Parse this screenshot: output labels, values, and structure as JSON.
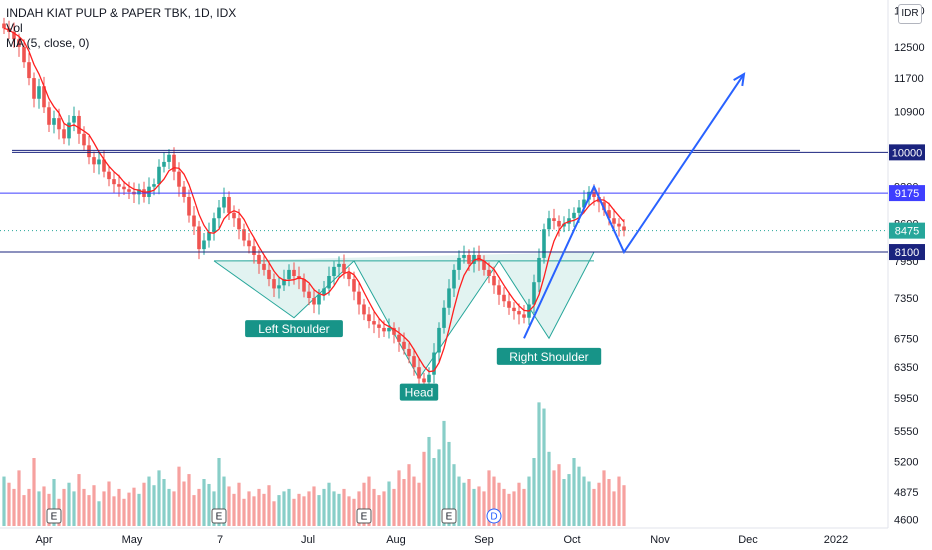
{
  "header": {
    "title": "INDAH KIAT PULP & PAPER TBK, 1D, IDX",
    "indicator_vol": "Vol",
    "indicator_ma": "MA (5, close, 0)",
    "currency": "IDR"
  },
  "colors": {
    "up": "#26a69a",
    "down": "#ef5350",
    "ma": "#ff1f1f",
    "pattern_fill": "#dff2ef",
    "pattern_stroke": "#26a69a",
    "arrow": "#2962ff",
    "line_navy": "#1a237e",
    "line_blue": "#3f3fff",
    "line_dark": "#131722",
    "price_tag": "#26a69a",
    "annotation_bg": "#179488"
  },
  "chart_data": {
    "type": "candlestick",
    "symbol": "INDAH KIAT PULP & PAPER TBK",
    "interval": "1D",
    "exchange": "IDX",
    "y_scale": "log",
    "ylim": [
      4500,
      14000
    ],
    "price_ticks": [
      13500,
      12500,
      11700,
      10900,
      10000,
      9300,
      8600,
      7950,
      7350,
      6750,
      6350,
      5950,
      5550,
      5200,
      4875,
      4600
    ],
    "x_tick_labels": [
      {
        "label": "Apr",
        "month": 4
      },
      {
        "label": "May",
        "month": 5
      },
      {
        "label": "7",
        "month": 6
      },
      {
        "label": "Jul",
        "month": 7
      },
      {
        "label": "Aug",
        "month": 8
      },
      {
        "label": "Sep",
        "month": 9
      },
      {
        "label": "Oct",
        "month": 10
      },
      {
        "label": "Nov",
        "month": 11
      },
      {
        "label": "Dec",
        "month": 12
      },
      {
        "label": "2022",
        "month": 13
      }
    ],
    "current_price": 8475,
    "horizontal_levels": [
      {
        "price": 10000,
        "label": "10000",
        "color": "navy"
      },
      {
        "price": 9175,
        "label": "9175",
        "color": "blue"
      },
      {
        "price": 8100,
        "label": "8100",
        "color": "navy"
      }
    ],
    "close_series": [
      13000,
      12900,
      12700,
      12500,
      12100,
      11700,
      11200,
      11500,
      11000,
      10600,
      10750,
      10500,
      10300,
      10650,
      10800,
      10400,
      10150,
      9900,
      9750,
      9850,
      9600,
      9450,
      9350,
      9300,
      9250,
      9200,
      9150,
      9250,
      9100,
      9300,
      9350,
      9700,
      9800,
      9950,
      9600,
      9300,
      9100,
      8750,
      8550,
      8150,
      8300,
      8450,
      8700,
      8900,
      9100,
      8800,
      8700,
      8500,
      8300,
      8200,
      8050,
      7900,
      7800,
      7650,
      7500,
      7550,
      7650,
      7800,
      7700,
      7650,
      7450,
      7350,
      7250,
      7400,
      7500,
      7700,
      7850,
      7900,
      7750,
      7650,
      7450,
      7250,
      7100,
      7000,
      6950,
      6900,
      6850,
      6900,
      6800,
      6700,
      6600,
      6500,
      6350,
      6200,
      6150,
      6250,
      6550,
      6900,
      7200,
      7500,
      7800,
      8000,
      8050,
      7900,
      8050,
      7950,
      7800,
      7700,
      7550,
      7400,
      7300,
      7200,
      7150,
      7100,
      7050,
      7250,
      7600,
      8000,
      8500,
      8700,
      8650,
      8550,
      8600,
      8700,
      8800,
      8900,
      9050,
      9200,
      9100,
      9000,
      8850,
      8700,
      8600,
      8550,
      8475
    ],
    "volume_series": [
      40,
      35,
      30,
      45,
      25,
      30,
      55,
      28,
      32,
      26,
      38,
      22,
      30,
      35,
      28,
      42,
      30,
      25,
      33,
      20,
      28,
      36,
      24,
      30,
      22,
      27,
      31,
      26,
      35,
      40,
      33,
      45,
      38,
      30,
      28,
      48,
      36,
      42,
      25,
      30,
      38,
      34,
      28,
      55,
      40,
      32,
      26,
      35,
      22,
      28,
      24,
      30,
      26,
      33,
      20,
      25,
      28,
      30,
      22,
      26,
      24,
      28,
      32,
      25,
      30,
      35,
      28,
      26,
      30,
      24,
      22,
      28,
      35,
      40,
      30,
      25,
      28,
      36,
      30,
      45,
      38,
      50,
      40,
      35,
      60,
      72,
      55,
      62,
      85,
      68,
      50,
      40,
      35,
      38,
      30,
      32,
      28,
      45,
      40,
      35,
      30,
      26,
      28,
      35,
      30,
      40,
      55,
      100,
      95,
      60,
      45,
      50,
      38,
      42,
      55,
      48,
      40,
      36,
      30,
      35,
      45,
      38,
      28,
      40,
      33
    ],
    "volume_ylim": [
      0,
      110
    ],
    "events": [
      {
        "label": "E",
        "kind": "earnings",
        "index": 10
      },
      {
        "label": "E",
        "kind": "earnings",
        "index": 43
      },
      {
        "label": "E",
        "kind": "earnings",
        "index": 72
      },
      {
        "label": "E",
        "kind": "earnings",
        "index": 89
      },
      {
        "label": "D",
        "kind": "dividend",
        "index": 98
      }
    ],
    "annotations": [
      {
        "label": "Left Shoulder",
        "price": 7000,
        "index": 58
      },
      {
        "label": "Head",
        "price": 6120,
        "index": 83
      },
      {
        "label": "Right Shoulder",
        "price": 6600,
        "index": 109
      }
    ],
    "pattern_points": [
      [
        42,
        7950
      ],
      [
        58,
        7050
      ],
      [
        70,
        7950
      ],
      [
        83,
        6200
      ],
      [
        99,
        7950
      ],
      [
        109,
        6750
      ],
      [
        118,
        8100
      ]
    ],
    "projection_path": [
      [
        104,
        6750
      ],
      [
        118,
        9300
      ],
      [
        124,
        8100
      ],
      [
        148,
        11800
      ]
    ]
  }
}
